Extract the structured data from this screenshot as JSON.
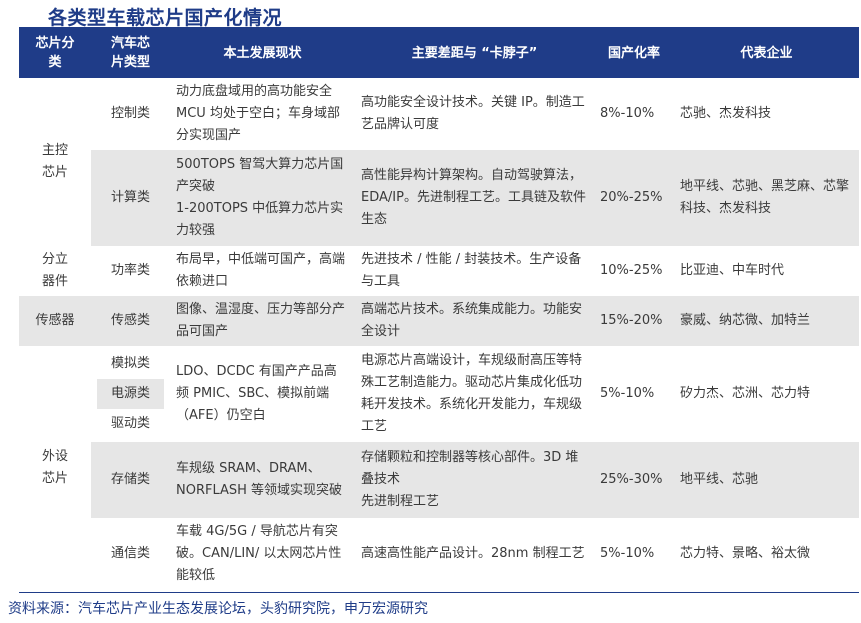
{
  "title": "各类型车载芯片国产化情况",
  "headers": [
    "芯片分类",
    "汽车芯片类型",
    "本土发展现状",
    "主要差距与 “卡脖子”",
    "国产化率",
    "代表企业"
  ],
  "rows": [
    {
      "group": "主控芯片",
      "type": "控制类",
      "status": "动力底盘域用的高功能安全 MCU 均处于空白；车身域部分实现国产",
      "gap": "高功能安全设计技术。关键 IP。制造工艺品牌认可度",
      "rate": "8%-10%",
      "companies": "芯驰、杰发科技"
    },
    {
      "group": "",
      "type": "计算类",
      "status": "500TOPS 智驾大算力芯片国产突破\n1-200TOPS 中低算力芯片实力较强",
      "gap": "高性能异构计算架构。自动驾驶算法，EDA/IP。先进制程工艺。工具链及软件生态",
      "rate": "20%-25%",
      "companies": "地平线、芯驰、黑芝麻、芯擎科技、杰发科技"
    },
    {
      "group": "分立器件",
      "type": "功率类",
      "status": "布局早，中低端可国产，高端依赖进口",
      "gap": "先进技术 / 性能 / 封装技术。生产设备与工具",
      "rate": "10%-25%",
      "companies": "比亚迪、中车时代"
    },
    {
      "group": "传感器",
      "type": "传感类",
      "status": "图像、温湿度、压力等部分产品可国产",
      "gap": "高端芯片技术。系统集成能力。功能安全设计",
      "rate": "15%-20%",
      "companies": "豪威、纳芯微、加特兰"
    },
    {
      "group": "外设芯片",
      "types": [
        "模拟类",
        "电源类",
        "驱动类"
      ],
      "status": "LDO、DCDC 有国产产品高频 PMIC、SBC、模拟前端（AFE）仍空白",
      "gap": "电源芯片高端设计，车规级耐高压等特殊工艺制造能力。驱动芯片集成化低功耗开发技术。系统化开发能力，车规级工艺",
      "rate": "5%-10%",
      "companies": "矽力杰、芯洲、芯力特"
    },
    {
      "group": "",
      "type": "存储类",
      "status": "车规级 SRAM、DRAM、NORFLASH 等领域实现突破",
      "gap": "存储颗粒和控制器等核心部件。3D 堆叠技术\n先进制程工艺",
      "rate": "25%-30%",
      "companies": "地平线、芯驰"
    },
    {
      "group": "",
      "type": "通信类",
      "status": "车载 4G/5G / 导航芯片有突破。CAN/LIN/ 以太网芯片性能较低",
      "gap": "高速高性能产品设计。28nm 制程工艺",
      "rate": "5%-10%",
      "companies": "芯力特、景略、裕太微"
    }
  ],
  "source": "资料来源：汽车芯片产业生态发展论坛，头豹研究院，申万宏源研究"
}
